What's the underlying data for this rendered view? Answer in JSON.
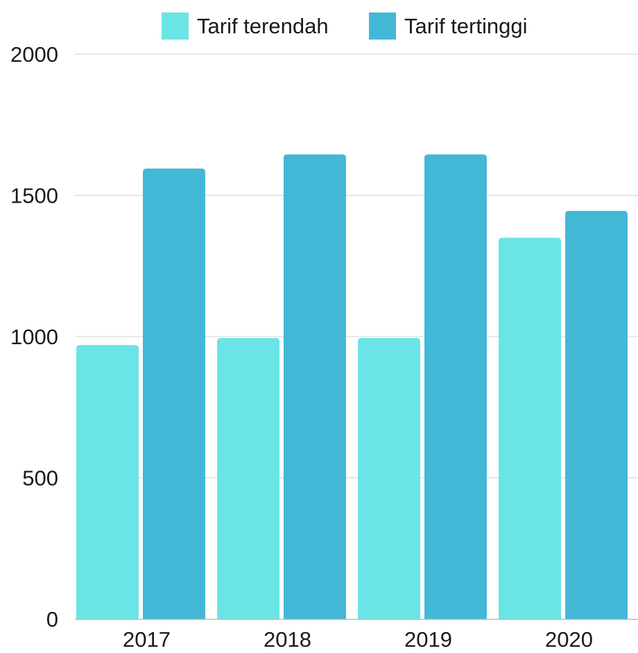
{
  "chart_data": {
    "type": "bar",
    "categories": [
      "2017",
      "2018",
      "2019",
      "2020"
    ],
    "series": [
      {
        "name": "Tarif terendah",
        "values": [
          970,
          995,
          995,
          1350
        ],
        "color": "#6be4e6"
      },
      {
        "name": "Tarif tertinggi",
        "values": [
          1595,
          1645,
          1645,
          1445
        ],
        "color": "#43b8d6"
      }
    ],
    "yticks": [
      "0",
      "500",
      "1000",
      "1500",
      "2000"
    ],
    "ylim": [
      0,
      2000
    ],
    "grid": true,
    "legend_position": "top-center",
    "colors": {
      "grid": "#d3d3d3",
      "axis": "#b9b9b9",
      "text": "#1a1a1a"
    }
  }
}
